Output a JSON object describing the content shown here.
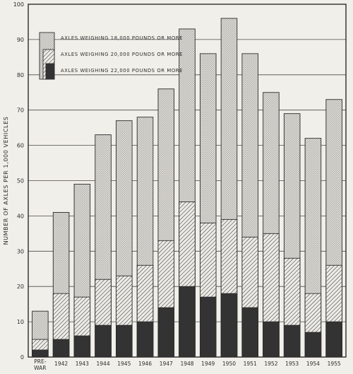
{
  "chart_data": {
    "type": "bar",
    "title": "",
    "xlabel": "",
    "ylabel": "NUMBER OF AXLES PER 1,000 VEHICLES",
    "ylim": [
      0,
      100
    ],
    "yticks": [
      0,
      10,
      20,
      30,
      40,
      50,
      60,
      70,
      80,
      90,
      100
    ],
    "grid": true,
    "legend_position": "top-left",
    "categories": [
      [
        "PRE-",
        "WAR"
      ],
      [
        "1942"
      ],
      [
        "1943"
      ],
      [
        "1944"
      ],
      [
        "1945"
      ],
      [
        "1946"
      ],
      [
        "1947"
      ],
      [
        "1948"
      ],
      [
        "1949"
      ],
      [
        "1950"
      ],
      [
        "1951"
      ],
      [
        "1952"
      ],
      [
        "1953"
      ],
      [
        "1954"
      ],
      [
        "1955"
      ]
    ],
    "series": [
      {
        "name": "AXLES WEIGHING 18,000 POUNDS OR MORE",
        "pattern": "dots",
        "values": [
          13,
          41,
          49,
          63,
          67,
          68,
          76,
          93,
          86,
          96,
          86,
          75,
          69,
          62,
          73
        ]
      },
      {
        "name": "AXLES WEIGHING 20,000 POUNDS OR MORE",
        "pattern": "hatch",
        "values": [
          5,
          18,
          17,
          22,
          23,
          26,
          33,
          44,
          38,
          39,
          34,
          35,
          28,
          18,
          26
        ]
      },
      {
        "name": "AXLES WEIGHING 22,000 POUNDS OR MORE",
        "pattern": "solid",
        "values": [
          2,
          5,
          6,
          9,
          9,
          10,
          14,
          20,
          17,
          18,
          14,
          10,
          9,
          7,
          10
        ]
      }
    ],
    "colors": {
      "background": "#f1efe9",
      "ink": "#2c2c2c",
      "dot_fill": "#d8d6d0",
      "solid": "#333333"
    }
  }
}
